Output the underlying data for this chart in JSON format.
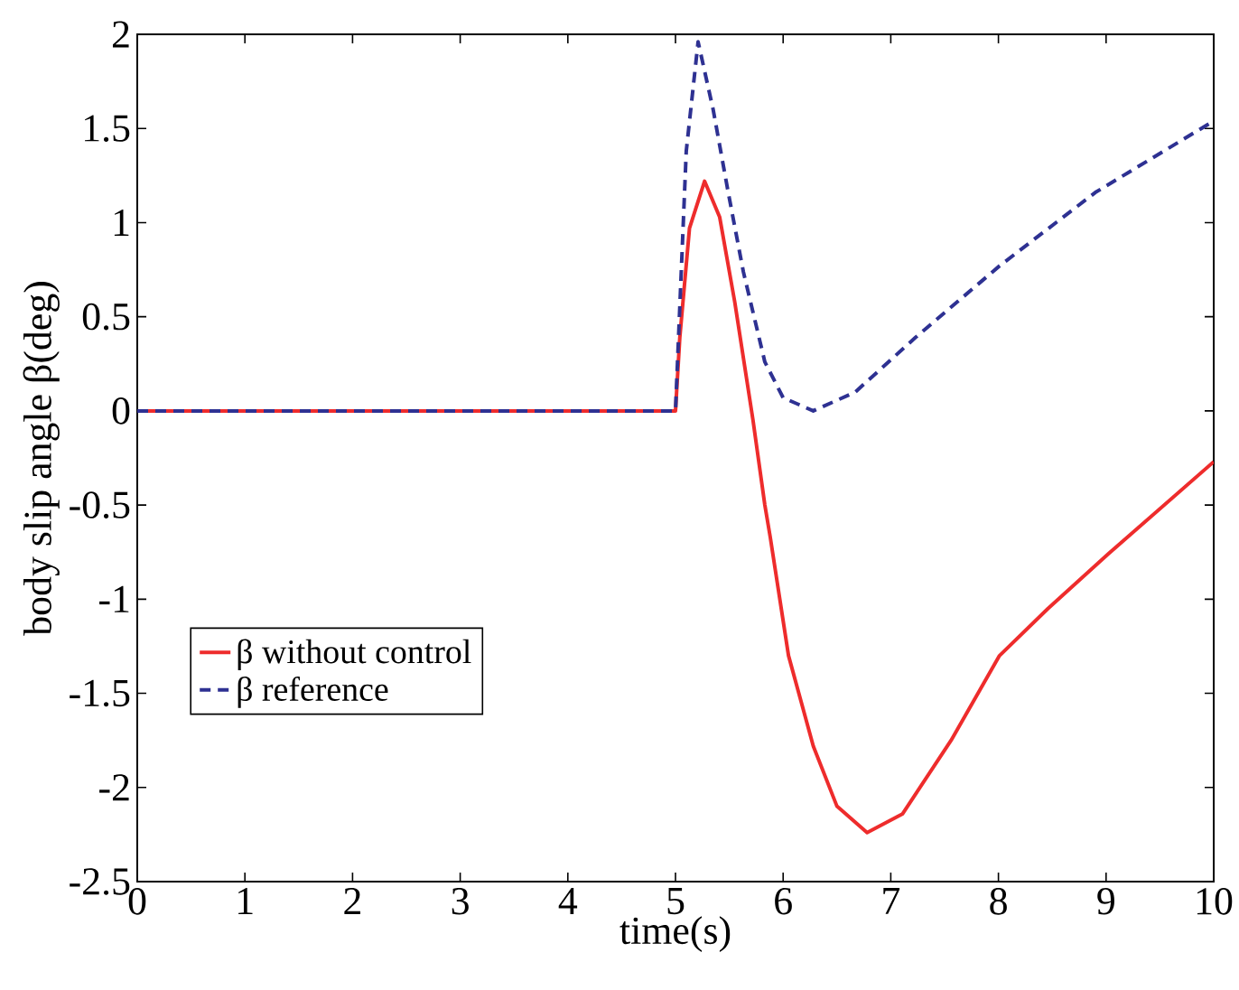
{
  "chart_data": {
    "type": "line",
    "xlabel": "time(s)",
    "ylabel": "body slip angle β(deg)",
    "xlim": [
      0,
      10
    ],
    "ylim": [
      -2.5,
      2
    ],
    "xticks": [
      0,
      1,
      2,
      3,
      4,
      5,
      6,
      7,
      8,
      9,
      10
    ],
    "yticks": [
      -2.5,
      -2,
      -1.5,
      -1,
      -0.5,
      0,
      0.5,
      1,
      1.5,
      2
    ],
    "grid": false,
    "legend": "bottom left",
    "series": [
      {
        "name": "β  without control",
        "color": "#ee2c2c",
        "line_style": "solid",
        "x": [
          0,
          5.0,
          5.04,
          5.13,
          5.27,
          5.41,
          5.55,
          5.72,
          5.83,
          5.88,
          6.05,
          6.28,
          6.5,
          6.78,
          7.11,
          7.56,
          8.01,
          8.46,
          9.02,
          10
        ],
        "values": [
          0,
          0,
          0.39,
          0.97,
          1.22,
          1.03,
          0.58,
          -0.05,
          -0.5,
          -0.67,
          -1.3,
          -1.78,
          -2.1,
          -2.24,
          -2.14,
          -1.75,
          -1.3,
          -1.05,
          -0.76,
          -0.27
        ]
      },
      {
        "name": "β reference",
        "color": "#2e3192",
        "line_style": "dashed",
        "x": [
          0,
          5.0,
          5.1,
          5.21,
          5.35,
          5.49,
          5.63,
          5.83,
          6.0,
          6.28,
          6.67,
          7.23,
          8.01,
          8.9,
          10
        ],
        "values": [
          0,
          0,
          1.38,
          1.96,
          1.6,
          1.16,
          0.74,
          0.26,
          0.07,
          0,
          0.1,
          0.39,
          0.77,
          1.16,
          1.54
        ]
      }
    ]
  }
}
